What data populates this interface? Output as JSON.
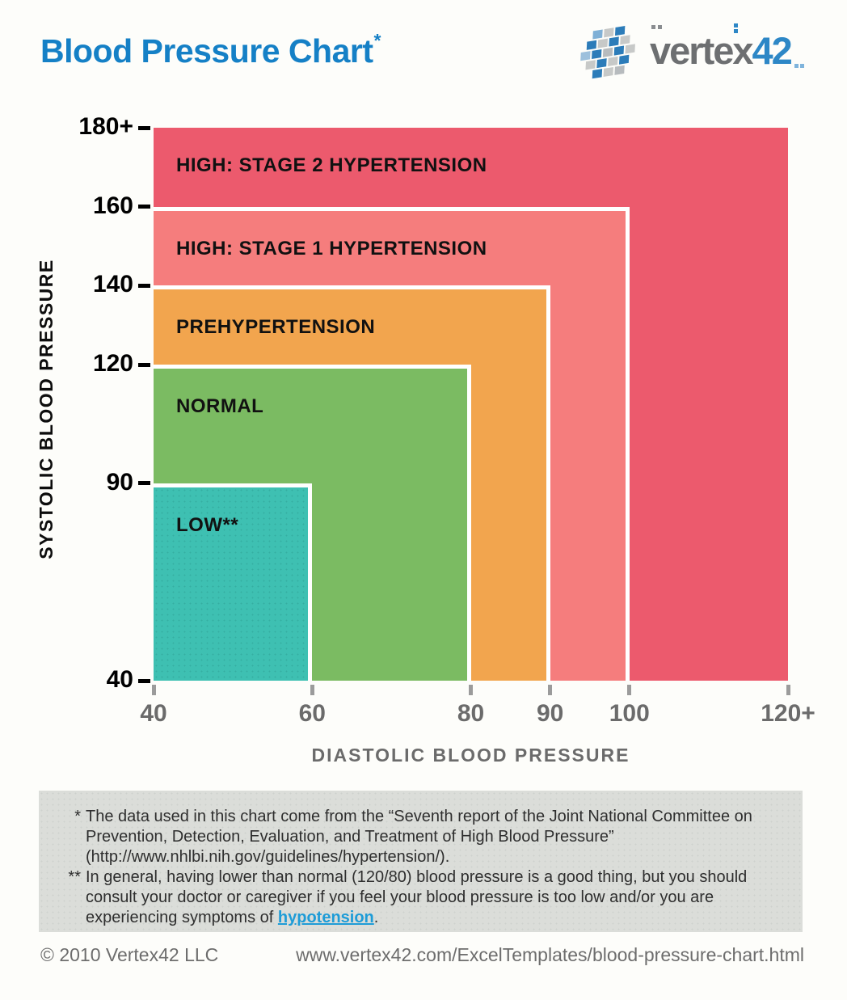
{
  "header": {
    "title": "Blood Pressure Chart",
    "title_asterisk": "*",
    "logo": {
      "word_gray": "vertex",
      "word_blue": "42"
    }
  },
  "chart_data": {
    "type": "area",
    "subtype": "nested-range-rectangles",
    "title": "Blood Pressure Chart",
    "xlabel": "DIASTOLIC BLOOD PRESSURE",
    "ylabel": "SYSTOLIC BLOOD PRESSURE",
    "xlim": [
      40,
      120
    ],
    "ylim": [
      40,
      180
    ],
    "grid": false,
    "x_ticks": [
      {
        "value": 40,
        "label": "40"
      },
      {
        "value": 60,
        "label": "60"
      },
      {
        "value": 80,
        "label": "80"
      },
      {
        "value": 90,
        "label": "90"
      },
      {
        "value": 100,
        "label": "100"
      },
      {
        "value": 120,
        "label": "120+"
      }
    ],
    "y_ticks": [
      {
        "value": 40,
        "label": "40"
      },
      {
        "value": 90,
        "label": "90"
      },
      {
        "value": 120,
        "label": "120"
      },
      {
        "value": 140,
        "label": "140"
      },
      {
        "value": 160,
        "label": "160"
      },
      {
        "value": 180,
        "label": "180+"
      }
    ],
    "zones": [
      {
        "label": "HIGH: STAGE 2 HYPERTENSION",
        "diastolic_min": 40,
        "systolic_min": 40,
        "diastolic_max": 120,
        "systolic_max": 180,
        "diastolic_max_display": "120+",
        "systolic_max_display": "180+",
        "color": "#EC5A6D",
        "textured": false
      },
      {
        "label": "HIGH: STAGE 1 HYPERTENSION",
        "diastolic_min": 40,
        "systolic_min": 40,
        "diastolic_max": 100,
        "systolic_max": 160,
        "color": "#F57D7D",
        "textured": false
      },
      {
        "label": "PREHYPERTENSION",
        "diastolic_min": 40,
        "systolic_min": 40,
        "diastolic_max": 90,
        "systolic_max": 140,
        "color": "#F2A54E",
        "textured": false
      },
      {
        "label": "NORMAL",
        "diastolic_min": 40,
        "systolic_min": 40,
        "diastolic_max": 80,
        "systolic_max": 120,
        "color": "#7BBB62",
        "textured": false
      },
      {
        "label": "LOW**",
        "diastolic_min": 40,
        "systolic_min": 40,
        "diastolic_max": 60,
        "systolic_max": 90,
        "color": "#3EC0B2",
        "textured": true,
        "texture_dot_color": "#35AEA1"
      }
    ],
    "zone_divider_color": "#FFFFFF"
  },
  "footnotes": {
    "note1_marker": "*",
    "note1_text": "The data used in this chart come from the “Seventh report of the Joint National Committee on Prevention, Detection, Evaluation, and Treatment of High Blood Pressure” (http://www.nhlbi.nih.gov/guidelines/hypertension/).",
    "note2_marker": "**",
    "note2_before": "In general, having lower than normal (120/80) blood pressure is a good thing, but you should consult your doctor or caregiver if you feel your blood pressure is too low and/or you are experiencing symptoms of ",
    "note2_link": "hypotension",
    "note2_after": "."
  },
  "footer": {
    "copyright": "© 2010 Vertex42 LLC",
    "url": "www.vertex42.com/ExcelTemplates/blood-pressure-chart.html"
  },
  "colors": {
    "title_blue": "#1580C6",
    "axis_gray": "#6B6B6B",
    "tick_black": "#000000",
    "notebox_bg": "#DBDDD9",
    "link_blue": "#1E9CD7",
    "background": "#FDFDFA"
  }
}
